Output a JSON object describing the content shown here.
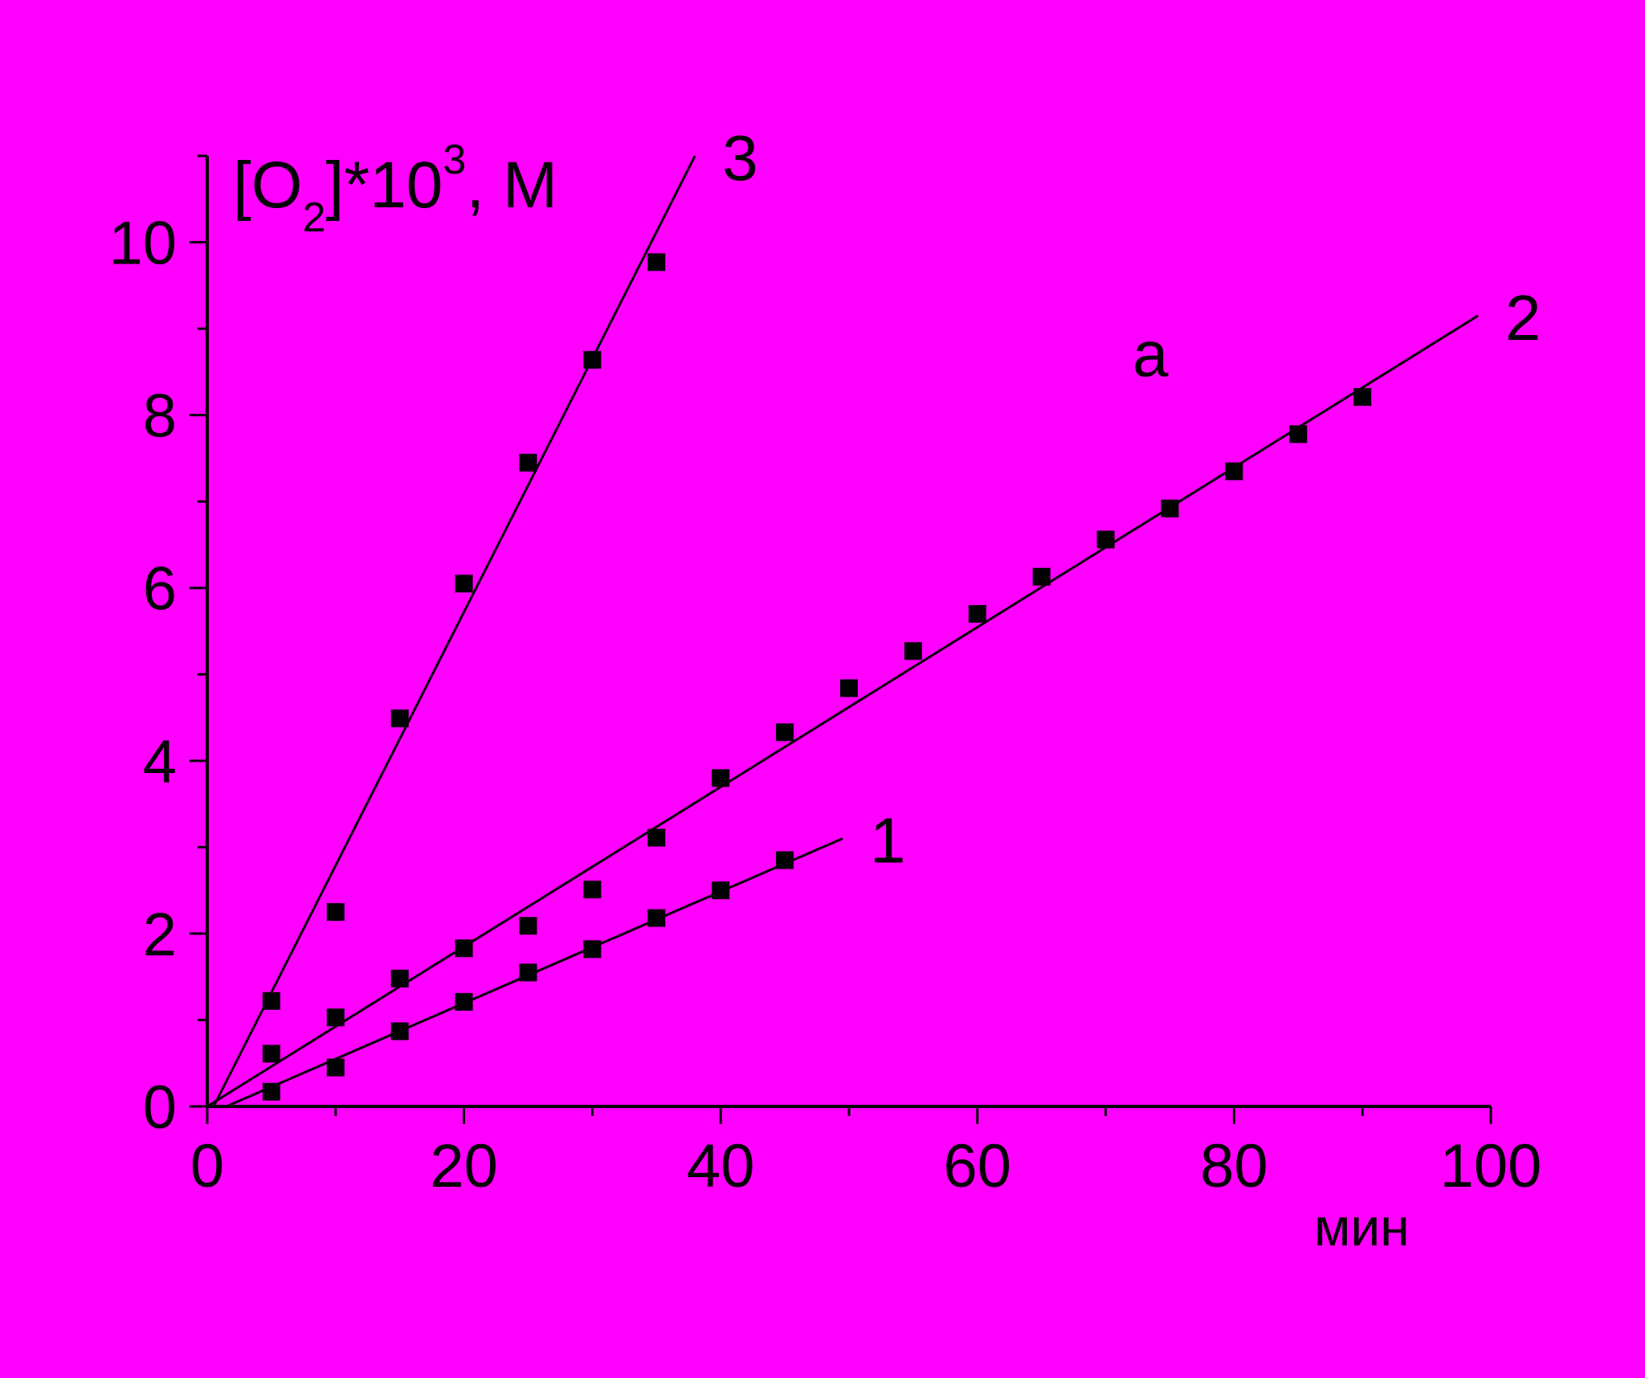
{
  "chart_data": {
    "type": "scatter",
    "title": "",
    "panel_label": "a",
    "ylabel": {
      "main": "[O",
      "sub": "2",
      "after": "]*10",
      "sup": "3",
      "unit": ", M"
    },
    "xlabel": "мин",
    "xlim": [
      0,
      100
    ],
    "ylim": [
      0,
      11
    ],
    "xticks": [
      0,
      20,
      40,
      60,
      80,
      100
    ],
    "xtick_labels": [
      "0",
      "20",
      "40",
      "60",
      "80",
      "100"
    ],
    "yticks": [
      0,
      2,
      4,
      6,
      8,
      10
    ],
    "ytick_labels": [
      "0",
      "2",
      "4",
      "6",
      "8",
      "10"
    ],
    "grid": false,
    "legend": "none",
    "colors": {
      "background": "#ff00ff",
      "ink": "#000000"
    },
    "series": [
      {
        "name": "1",
        "x": [
          5,
          10,
          15,
          20,
          25,
          30,
          35,
          40,
          45
        ],
        "y": [
          0.17,
          0.45,
          0.87,
          1.21,
          1.55,
          1.82,
          2.18,
          2.5,
          2.85
        ],
        "fit": {
          "x": [
            1.5,
            49.5
          ],
          "y": [
            0.0,
            3.1
          ]
        }
      },
      {
        "name": "2",
        "x": [
          5,
          10,
          15,
          20,
          25,
          30,
          35,
          40,
          45,
          50,
          55,
          60,
          65,
          70,
          75,
          80,
          85,
          90
        ],
        "y": [
          0.61,
          1.03,
          1.48,
          1.83,
          2.09,
          2.51,
          3.11,
          3.8,
          4.33,
          4.84,
          5.27,
          5.7,
          6.13,
          6.56,
          6.92,
          7.35,
          7.78,
          8.21
        ],
        "fit": {
          "x": [
            0,
            99
          ],
          "y": [
            0.0,
            9.15
          ]
        }
      },
      {
        "name": "3",
        "x": [
          5,
          10,
          15,
          20,
          25,
          30,
          35
        ],
        "y": [
          1.22,
          2.25,
          4.49,
          6.05,
          7.45,
          8.64,
          9.77
        ],
        "fit": {
          "x": [
            0.5,
            38
          ],
          "y": [
            0.0,
            11.0
          ]
        }
      }
    ]
  }
}
